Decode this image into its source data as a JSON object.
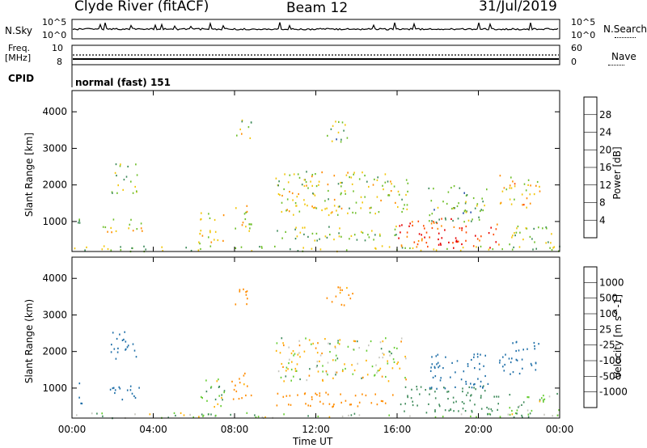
{
  "header": {
    "station": "Clyde River (fitACF)",
    "beam": "Beam 12",
    "date": "31/Jul/2019"
  },
  "top_panel": {
    "nsky_label": "N.Sky",
    "nsky_ticks": [
      "10^5",
      "10^0"
    ],
    "nsearch_label": "N.Search",
    "nsearch_ticks": [
      "10^5",
      "10^0"
    ],
    "freq_label": "Freq.",
    "freq_unit": "[MHz]",
    "freq_ticks": [
      "10",
      "8"
    ],
    "nave_label": "Nave",
    "nave_ticks": [
      "60",
      "0"
    ],
    "cpid_label": "CPID",
    "cpid_text": "normal (fast) 151"
  },
  "colors": {
    "power_scale": [
      "#0000ff",
      "#1f4aa8",
      "#3e8a5a",
      "#6fbf2a",
      "#f2c60a",
      "#ff8c00",
      "#ff4a00",
      "#e60000"
    ],
    "velocity_scale": [
      "#2448c8",
      "#1f6fa8",
      "#3e8a5a",
      "#66cc33",
      "#c8c8c0",
      "#ffb000",
      "#ff8c00",
      "#ff5a00",
      "#e60000"
    ]
  },
  "chart_data": [
    {
      "type": "heatmap",
      "panel": "power",
      "ylabel": "Slant Range [km]",
      "y_ticks": [
        1000,
        2000,
        3000,
        4000
      ],
      "ylim": [
        180,
        4580
      ],
      "xlim": [
        0,
        24
      ],
      "colorbar_label": "Power [dB]",
      "colorbar_ticks": [
        "4",
        "8",
        "12",
        "16",
        "20",
        "24",
        "28"
      ],
      "regions": [
        {
          "t0": 0.0,
          "t1": 24.0,
          "r0": 200,
          "r1": 350,
          "intensity": 0.45
        },
        {
          "t0": 0.1,
          "t1": 0.5,
          "r0": 600,
          "r1": 1200,
          "intensity": 0.4
        },
        {
          "t0": 1.5,
          "t1": 3.5,
          "r0": 700,
          "r1": 1100,
          "intensity": 0.55
        },
        {
          "t0": 1.8,
          "t1": 3.2,
          "r0": 1800,
          "r1": 2600,
          "intensity": 0.45
        },
        {
          "t0": 6.2,
          "t1": 7.5,
          "r0": 400,
          "r1": 1300,
          "intensity": 0.55
        },
        {
          "t0": 7.8,
          "t1": 8.8,
          "r0": 700,
          "r1": 1500,
          "intensity": 0.5
        },
        {
          "t0": 10.0,
          "t1": 16.5,
          "r0": 1200,
          "r1": 2400,
          "intensity": 0.5
        },
        {
          "t0": 10.0,
          "t1": 16.0,
          "r0": 500,
          "r1": 900,
          "intensity": 0.45
        },
        {
          "t0": 16.0,
          "t1": 21.0,
          "r0": 300,
          "r1": 1100,
          "intensity": 0.85
        },
        {
          "t0": 17.5,
          "t1": 20.5,
          "r0": 1000,
          "r1": 2000,
          "intensity": 0.4
        },
        {
          "t0": 21.0,
          "t1": 23.0,
          "r0": 1400,
          "r1": 2300,
          "intensity": 0.6
        },
        {
          "t0": 21.5,
          "t1": 24.0,
          "r0": 300,
          "r1": 900,
          "intensity": 0.45
        },
        {
          "t0": 12.5,
          "t1": 13.8,
          "r0": 3200,
          "r1": 3800,
          "intensity": 0.4
        },
        {
          "t0": 8.0,
          "t1": 9.0,
          "r0": 3300,
          "r1": 3800,
          "intensity": 0.5
        }
      ]
    },
    {
      "type": "heatmap",
      "panel": "velocity",
      "ylabel": "Slant Range (km)",
      "xlabel": "Time UT",
      "x_ticks": [
        "00:00",
        "04:00",
        "08:00",
        "12:00",
        "16:00",
        "20:00",
        "00:00"
      ],
      "y_ticks": [
        1000,
        2000,
        3000,
        4000
      ],
      "ylim": [
        180,
        4580
      ],
      "xlim": [
        0,
        24
      ],
      "colorbar_label": "Velocity [m s^-1]",
      "colorbar_ticks": [
        "1000",
        "500",
        "100",
        "25",
        "-25",
        "-100",
        "-500",
        "-1000"
      ],
      "regions": [
        {
          "t0": 0.0,
          "t1": 24.0,
          "r0": 200,
          "r1": 350,
          "velocity": 80
        },
        {
          "t0": 0.1,
          "t1": 0.5,
          "r0": 600,
          "r1": 1200,
          "velocity": 800
        },
        {
          "t0": 1.5,
          "t1": 3.5,
          "r0": 700,
          "r1": 1100,
          "velocity": 700
        },
        {
          "t0": 1.8,
          "t1": 3.2,
          "r0": 1800,
          "r1": 2600,
          "velocity": 800
        },
        {
          "t0": 6.2,
          "t1": 7.5,
          "r0": 400,
          "r1": 1300,
          "velocity": 60
        },
        {
          "t0": 7.8,
          "t1": 8.8,
          "r0": 700,
          "r1": 1500,
          "velocity": -200
        },
        {
          "t0": 10.0,
          "t1": 16.5,
          "r0": 1200,
          "r1": 2400,
          "velocity": 0
        },
        {
          "t0": 10.0,
          "t1": 16.0,
          "r0": 500,
          "r1": 900,
          "velocity": -300
        },
        {
          "t0": 16.0,
          "t1": 21.0,
          "r0": 300,
          "r1": 1100,
          "velocity": 300
        },
        {
          "t0": 17.5,
          "t1": 20.5,
          "r0": 1000,
          "r1": 2000,
          "velocity": 700
        },
        {
          "t0": 21.0,
          "t1": 23.0,
          "r0": 1400,
          "r1": 2300,
          "velocity": 800
        },
        {
          "t0": 21.5,
          "t1": 24.0,
          "r0": 300,
          "r1": 900,
          "velocity": 80
        },
        {
          "t0": 12.5,
          "t1": 13.8,
          "r0": 3200,
          "r1": 3800,
          "velocity": -150
        },
        {
          "t0": 8.0,
          "t1": 9.0,
          "r0": 3300,
          "r1": 3800,
          "velocity": -200
        }
      ]
    }
  ]
}
